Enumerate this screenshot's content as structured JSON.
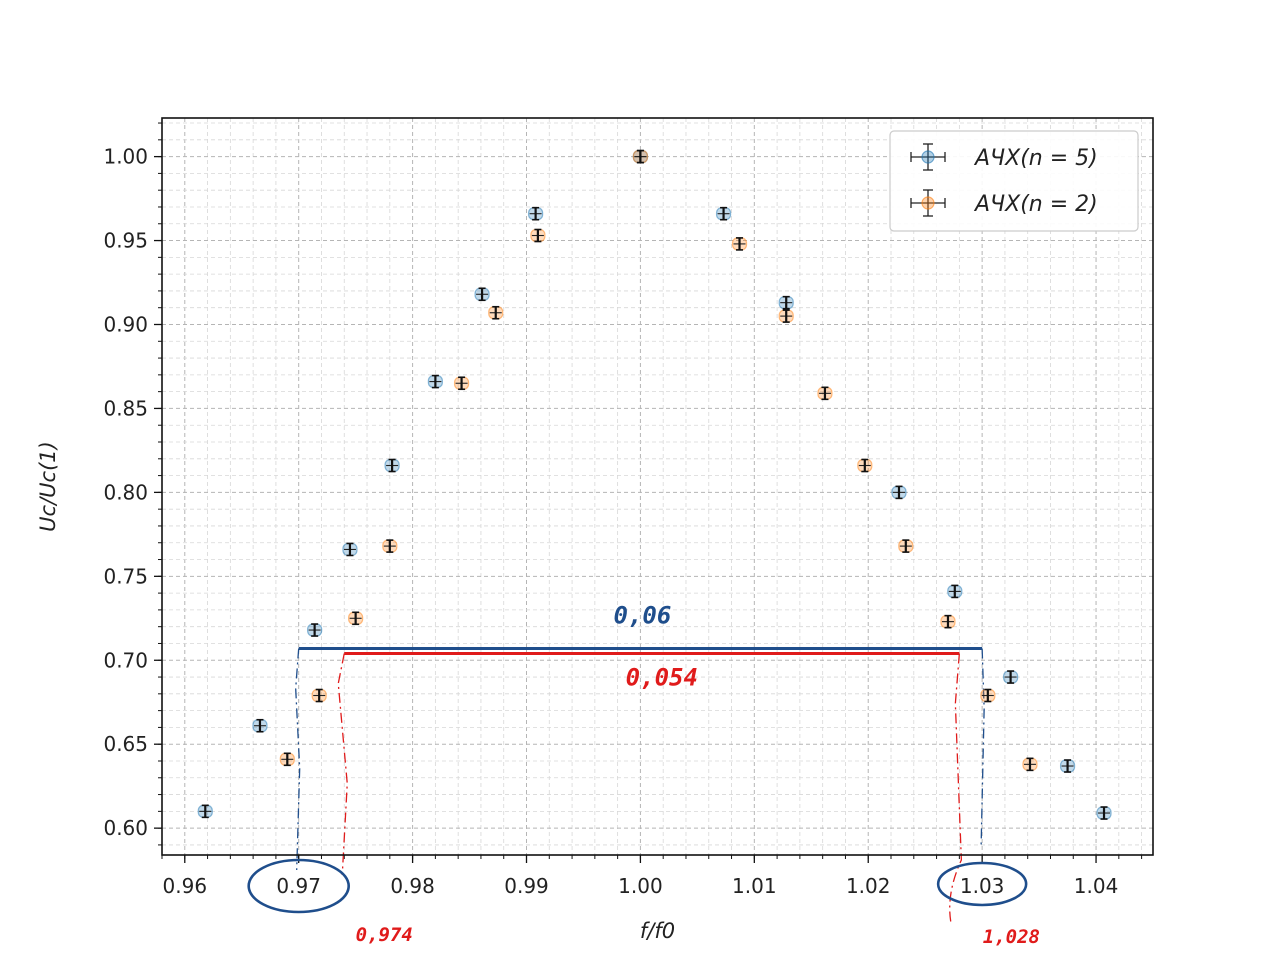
{
  "chart_data": {
    "type": "scatter",
    "xlabel": "f/f0",
    "ylabel": "Uc/Uc(1)",
    "xlim": [
      0.958,
      1.045
    ],
    "ylim": [
      0.584,
      1.023
    ],
    "xticks": [
      "0.96",
      "0.97",
      "0.98",
      "0.99",
      "1.00",
      "1.01",
      "1.02",
      "1.03",
      "1.04"
    ],
    "yticks": [
      "0.60",
      "0.65",
      "0.70",
      "0.75",
      "0.80",
      "0.85",
      "0.90",
      "0.95",
      "1.00"
    ],
    "grid": "on (major and minor)",
    "legend_position": "top-right",
    "legend": [
      "АЧХ(n = 5)",
      "АЧХ(n = 2)"
    ],
    "series": [
      {
        "name": "АЧХ(n = 5)",
        "color": "#1f77b4",
        "x": [
          0.9618,
          0.9666,
          0.9714,
          0.9745,
          0.9782,
          0.982,
          0.9861,
          0.9908,
          1.0,
          1.0073,
          1.0128,
          1.0227,
          1.0276,
          1.0325,
          1.0375,
          1.0407
        ],
        "y": [
          0.61,
          0.661,
          0.718,
          0.766,
          0.816,
          0.866,
          0.918,
          0.966,
          1.0,
          0.966,
          0.913,
          0.8,
          0.741,
          0.69,
          0.637,
          0.609
        ]
      },
      {
        "name": "АЧХ(n = 2)",
        "color": "#ff7f0e",
        "x": [
          0.969,
          0.9718,
          0.975,
          0.978,
          0.9843,
          0.9873,
          0.991,
          1.0,
          1.0087,
          1.0128,
          1.0162,
          1.0197,
          1.0233,
          1.027,
          1.0305,
          1.0342
        ],
        "y": [
          0.641,
          0.679,
          0.725,
          0.768,
          0.865,
          0.907,
          0.953,
          1.0,
          0.948,
          0.905,
          0.859,
          0.816,
          0.768,
          0.723,
          0.679,
          0.638
        ]
      }
    ],
    "annotations": {
      "blue": {
        "level": 0.707,
        "x_left": 0.97,
        "x_right": 1.03,
        "width_label": "0,06",
        "color": "#1f4e8c"
      },
      "red": {
        "level": 0.704,
        "x_left": 0.974,
        "x_right": 1.028,
        "width_label": "0,054",
        "left_label": "0,974",
        "right_label": "1,028",
        "color": "#e01b1b"
      }
    }
  }
}
